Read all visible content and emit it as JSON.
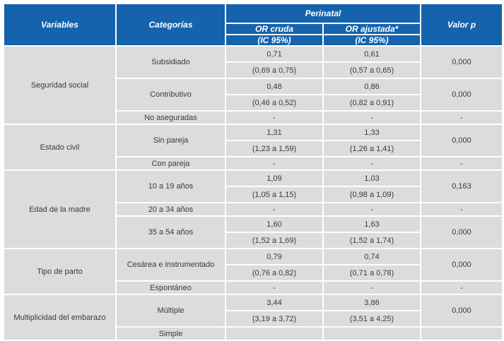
{
  "header": {
    "variables": "Variables",
    "categorias": "Categorías",
    "perinatal": "Perinatal",
    "or_cruda": "OR cruda",
    "or_cruda_ic": "(IC 95%)",
    "or_ajustada": "OR ajustada*",
    "or_ajustada_ic": "(IC 95%)",
    "valor_p": "Valor p"
  },
  "groups": [
    {
      "variable": "Seguridad social",
      "rows": [
        {
          "categoria": "Subsidiado",
          "or_cruda": "0,71",
          "ic_cruda": "(0,69 a 0,75)",
          "or_ajustada": "0,61",
          "ic_ajustada": "(0,57 a 0,65)",
          "p": "0,000"
        },
        {
          "categoria": "Contributivo",
          "or_cruda": "0,48",
          "ic_cruda": "(0,46 a 0,52)",
          "or_ajustada": "0,86",
          "ic_ajustada": "(0,82 a 0,91)",
          "p": "0,000"
        },
        {
          "categoria": "No aseguradas",
          "single": true,
          "or_cruda": "-",
          "or_ajustada": "-",
          "p": "-"
        }
      ]
    },
    {
      "variable": "Estado civil",
      "rows": [
        {
          "categoria": "Sin pareja",
          "or_cruda": "1,31",
          "ic_cruda": "(1,23 a 1,59)",
          "or_ajustada": "1,33",
          "ic_ajustada": "(1,26 a 1,41)",
          "p": "0,000"
        },
        {
          "categoria": "Con pareja",
          "single": true,
          "or_cruda": "-",
          "or_ajustada": "-",
          "p": "-"
        }
      ]
    },
    {
      "variable": "Edad de la madre",
      "rows": [
        {
          "categoria": "10 a 19 años",
          "or_cruda": "1,09",
          "ic_cruda": "(1,05 a 1,15)",
          "or_ajustada": "1,03",
          "ic_ajustada": "(0,98 a 1,09)",
          "p": "0,163"
        },
        {
          "categoria": "20 a 34 años",
          "single": true,
          "or_cruda": "-",
          "or_ajustada": "-",
          "p": "-"
        },
        {
          "categoria": "35 a 54 años",
          "or_cruda": "1,60",
          "ic_cruda": "(1,52 a 1,69)",
          "or_ajustada": "1,63",
          "ic_ajustada": "(1,52 a 1,74)",
          "p": "0,000"
        }
      ]
    },
    {
      "variable": "Tipo de parto",
      "rows": [
        {
          "categoria": "Cesárea e instrumentado",
          "or_cruda": "0,79",
          "ic_cruda": "(0,76 a 0,82)",
          "or_ajustada": "0,74",
          "ic_ajustada": "(0,71 a 0,78)",
          "p": "0,000"
        },
        {
          "categoria": "Espontáneo",
          "single": true,
          "or_cruda": "-",
          "or_ajustada": "-",
          "p": "-"
        }
      ]
    },
    {
      "variable": "Multiplicidad del embarazo",
      "rows": [
        {
          "categoria": "Múltiple",
          "or_cruda": "3,44",
          "ic_cruda": "(3,19 a 3,72)",
          "or_ajustada": "3,86",
          "ic_ajustada": "(3,51 a 4,25)",
          "p": "0,000"
        },
        {
          "categoria": "Simple",
          "single": true,
          "or_cruda": "",
          "or_ajustada": "",
          "p": ""
        }
      ]
    }
  ]
}
